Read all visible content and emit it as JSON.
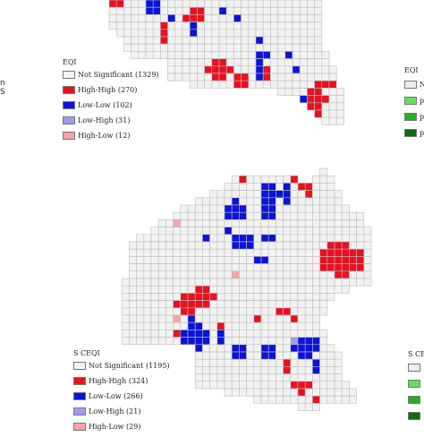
{
  "colors": {
    "not_significant": "#f2f2f2",
    "high_high": "#e8111f",
    "low_low": "#0a14d9",
    "low_high": "#9c9cf0",
    "high_low": "#f7a3a8",
    "grid_line": "#bdbdbd",
    "green_1": "#eeeeee",
    "green_2": "#5fe35a",
    "green_3": "#23b023",
    "green_4": "#0a6e0a"
  },
  "top_map": {
    "legend": {
      "title": "EQI",
      "items": [
        {
          "class": "not_significant",
          "label": "Not Significant (1329)"
        },
        {
          "class": "high_high",
          "label": "High-High (270)"
        },
        {
          "class": "low_low",
          "label": "Low-Low (102)"
        },
        {
          "class": "low_high",
          "label": "Low-High (31)"
        },
        {
          "class": "high_low",
          "label": "High-Low (12)"
        }
      ]
    }
  },
  "bottom_map": {
    "legend": {
      "title": "S CEQI",
      "items": [
        {
          "class": "not_significant",
          "label": "Not Significant (1195)"
        },
        {
          "class": "high_high",
          "label": "High-High (324)"
        },
        {
          "class": "low_low",
          "label": "Low-Low (266)"
        },
        {
          "class": "low_high",
          "label": "Low-High (21)"
        },
        {
          "class": "high_low",
          "label": "High-Low (29)"
        }
      ]
    }
  },
  "right_legend_top": {
    "title": "EQI",
    "fragment": "N",
    "items": [
      {
        "color": "green_1",
        "label": ""
      },
      {
        "color": "green_2",
        "label": "p"
      },
      {
        "color": "green_3",
        "label": "p"
      },
      {
        "color": "green_4",
        "label": "p"
      }
    ]
  },
  "right_legend_bottom": {
    "title": "S CE",
    "items": [
      {
        "color": "green_1"
      },
      {
        "color": "green_2"
      },
      {
        "color": "green_3"
      },
      {
        "color": "green_4"
      }
    ]
  },
  "left_fragment": "n\nS"
}
